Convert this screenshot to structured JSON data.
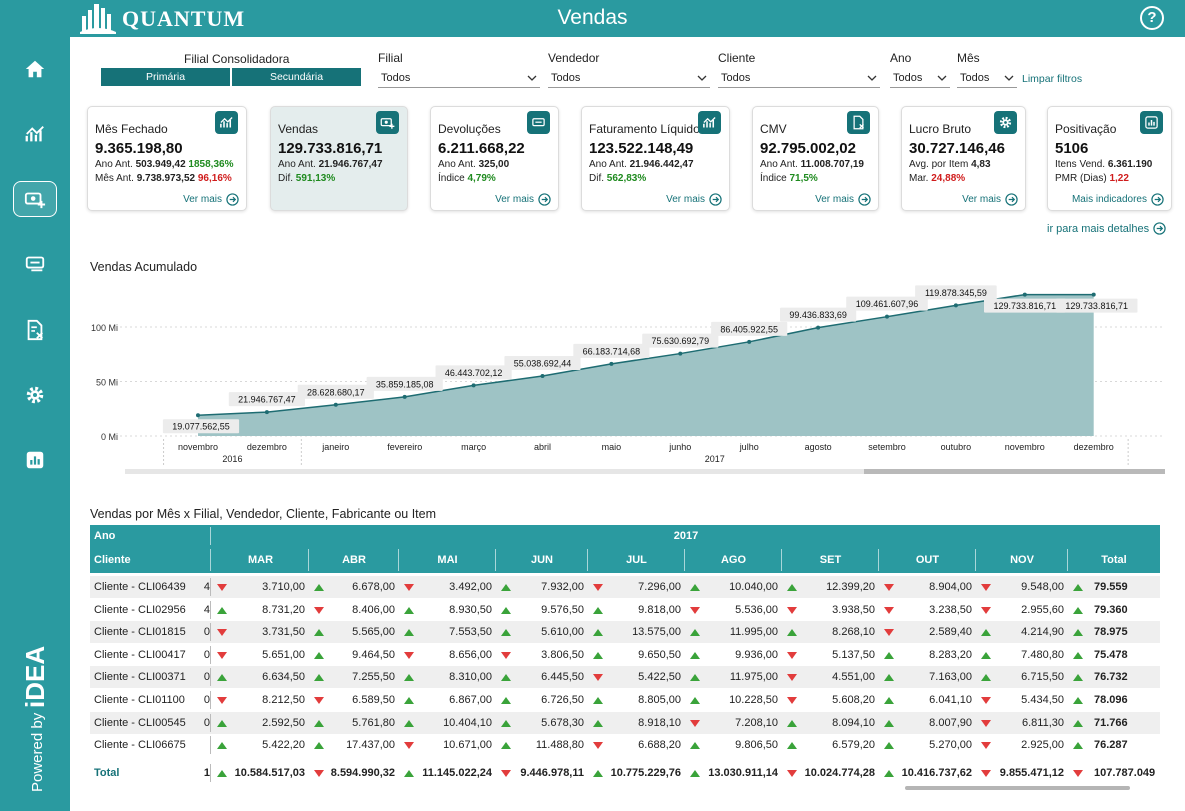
{
  "app": {
    "brand": "QUANTUM",
    "title": "Vendas",
    "help": "?"
  },
  "sidebar": {
    "items": [
      {
        "name": "home-icon"
      },
      {
        "name": "trend-chart-icon"
      },
      {
        "name": "sales-icon"
      },
      {
        "name": "returns-icon"
      },
      {
        "name": "document-x-icon"
      },
      {
        "name": "gear-icon"
      },
      {
        "name": "bar-chart-icon"
      }
    ],
    "powered_by": "Powered by",
    "powered_brand": "iDEA"
  },
  "filters": {
    "consolidated_label": "Filial Consolidadora",
    "seg_primary": "Primária",
    "seg_secondary": "Secundária",
    "filial": {
      "label": "Filial",
      "value": "Todos"
    },
    "vendedor": {
      "label": "Vendedor",
      "value": "Todos"
    },
    "cliente": {
      "label": "Cliente",
      "value": "Todos"
    },
    "ano": {
      "label": "Ano",
      "value": "Todos"
    },
    "mes": {
      "label": "Mês",
      "value": "Todos"
    },
    "clear": "Limpar filtros"
  },
  "kpis": [
    {
      "title": "Mês Fechado",
      "value": "9.365.198,80",
      "l1a": "Ano Ant. ",
      "l1b": "503.949,42",
      "l1c": " 1858,36%",
      "l1cls": "pos",
      "l2a": "Mês Ant. ",
      "l2b": "9.738.973,52",
      "l2c": " 96,16%",
      "l2cls": "neg",
      "more": "Ver mais"
    },
    {
      "title": "Vendas",
      "value": "129.733.816,71",
      "l1a": "Ano Ant. ",
      "l1b": "21.946.767,47",
      "l1c": "",
      "l1cls": "pos",
      "l2a": "Dif. ",
      "l2b": "",
      "l2c": "591,13%",
      "l2cls": "pos",
      "more": ""
    },
    {
      "title": "Devoluções",
      "value": "6.211.668,22",
      "l1a": "Ano Ant. ",
      "l1b": "325,00",
      "l1c": "",
      "l1cls": "pos",
      "l2a": "Índice ",
      "l2b": "",
      "l2c": "4,79%",
      "l2cls": "pos",
      "more": "Ver mais"
    },
    {
      "title": "Faturamento Líquido",
      "value": "123.522.148,49",
      "l1a": "Ano Ant. ",
      "l1b": "21.946.442,47",
      "l1c": "",
      "l1cls": "pos",
      "l2a": "Dif. ",
      "l2b": "",
      "l2c": "562,83%",
      "l2cls": "pos",
      "more": "Ver mais"
    },
    {
      "title": "CMV",
      "value": "92.795.002,02",
      "l1a": "Ano Ant. ",
      "l1b": "11.008.707,19",
      "l1c": "",
      "l1cls": "pos",
      "l2a": "Índice ",
      "l2b": "",
      "l2c": "71,5%",
      "l2cls": "pos",
      "more": "Ver mais"
    },
    {
      "title": "Lucro Bruto",
      "value": "30.727.146,46",
      "l1a": "Avg. por Item ",
      "l1b": "4,83",
      "l1c": "",
      "l1cls": "pos",
      "l2a": "Mar. ",
      "l2b": "",
      "l2c": "24,88%",
      "l2cls": "neg",
      "more": "Ver mais"
    },
    {
      "title": "Positivação",
      "value": "5106",
      "l1a": "Itens Vend. ",
      "l1b": "6.361.190",
      "l1c": "",
      "l1cls": "pos",
      "l2a": "PMR (Dias) ",
      "l2b": "",
      "l2c": "1,22",
      "l2cls": "neg",
      "more": "Mais indicadores"
    }
  ],
  "more_details": "ir para mais detalhes",
  "chart_data": {
    "type": "area",
    "title": "Vendas Acumulado",
    "x": [
      "novembro",
      "dezembro",
      "janeiro",
      "fevereiro",
      "março",
      "abril",
      "maio",
      "junho",
      "julho",
      "agosto",
      "setembro",
      "outubro",
      "novembro",
      "dezembro"
    ],
    "year_groups": [
      {
        "year": "2016",
        "count": 2
      },
      {
        "year": "2017",
        "count": 12
      }
    ],
    "values": [
      19077562.55,
      21946767.47,
      28628680.17,
      35859185.08,
      46443702.12,
      55038692.44,
      66183714.68,
      75630692.79,
      86405922.55,
      99436833.69,
      109461607.96,
      119878345.59,
      129733816.71,
      129733816.71
    ],
    "labels": [
      "19.077.562,55",
      "21.946.767,47",
      "28.628.680,17",
      "35.859.185,08",
      "46.443.702,12",
      "55.038.692,44",
      "66.183.714,68",
      "75.630.692,79",
      "86.405.922,55",
      "99.436.833,69",
      "109.461.607,96",
      "119.878.345,59",
      "129.733.816,71",
      "129.733.816,71"
    ],
    "yticks": [
      "0 Mi",
      "50 Mi",
      "100 Mi"
    ],
    "ytick_values": [
      0,
      50000000,
      100000000
    ],
    "ylim": [
      0,
      140000000
    ],
    "grid": true,
    "fill": "#9ec3c5",
    "line": "#1e6c72"
  },
  "table": {
    "title": "Vendas por Mês x Filial, Vendedor, Cliente, Fabricante ou Item",
    "row_header_year": "Ano",
    "row_header_client": "Cliente",
    "year": "2017",
    "months": [
      "MAR",
      "ABR",
      "MAI",
      "JUN",
      "JUL",
      "AGO",
      "SET",
      "OUT",
      "NOV"
    ],
    "total_label": "Total",
    "rows": [
      {
        "client": "Cliente - CLI06439",
        "clip": "4",
        "cells": [
          [
            "dn",
            "3.710,00"
          ],
          [
            "up",
            "6.678,00"
          ],
          [
            "dn",
            "3.492,00"
          ],
          [
            "up",
            "7.932,00"
          ],
          [
            "dn",
            "7.296,00"
          ],
          [
            "up",
            "10.040,00"
          ],
          [
            "up",
            "12.399,20"
          ],
          [
            "dn",
            "8.904,00"
          ],
          [
            "dn",
            "9.548,00"
          ]
        ],
        "total": [
          "up",
          "79.559"
        ]
      },
      {
        "client": "Cliente - CLI02956",
        "clip": "4",
        "cells": [
          [
            "up",
            "8.731,20"
          ],
          [
            "dn",
            "8.406,00"
          ],
          [
            "up",
            "8.930,50"
          ],
          [
            "up",
            "9.576,50"
          ],
          [
            "up",
            "9.818,00"
          ],
          [
            "dn",
            "5.536,00"
          ],
          [
            "dn",
            "3.938,50"
          ],
          [
            "dn",
            "3.238,50"
          ],
          [
            "dn",
            "2.955,60"
          ]
        ],
        "total": [
          "up",
          "79.360"
        ]
      },
      {
        "client": "Cliente - CLI01815",
        "clip": "0",
        "cells": [
          [
            "dn",
            "3.731,50"
          ],
          [
            "up",
            "5.565,00"
          ],
          [
            "up",
            "7.553,50"
          ],
          [
            "up",
            "5.610,00"
          ],
          [
            "up",
            "13.575,00"
          ],
          [
            "up",
            "11.995,00"
          ],
          [
            "up",
            "8.268,10"
          ],
          [
            "dn",
            "2.589,40"
          ],
          [
            "up",
            "4.214,90"
          ]
        ],
        "total": [
          "up",
          "78.975"
        ]
      },
      {
        "client": "Cliente - CLI00417",
        "clip": "0",
        "cells": [
          [
            "dn",
            "5.651,00"
          ],
          [
            "up",
            "9.464,50"
          ],
          [
            "dn",
            "8.656,00"
          ],
          [
            "dn",
            "3.806,50"
          ],
          [
            "up",
            "9.650,50"
          ],
          [
            "up",
            "9.936,00"
          ],
          [
            "dn",
            "5.137,50"
          ],
          [
            "up",
            "8.283,20"
          ],
          [
            "up",
            "7.480,80"
          ]
        ],
        "total": [
          "up",
          "75.478"
        ]
      },
      {
        "client": "Cliente - CLI00371",
        "clip": "0",
        "cells": [
          [
            "up",
            "6.634,50"
          ],
          [
            "up",
            "7.255,50"
          ],
          [
            "up",
            "8.310,00"
          ],
          [
            "up",
            "6.445,50"
          ],
          [
            "dn",
            "5.422,50"
          ],
          [
            "up",
            "11.975,00"
          ],
          [
            "dn",
            "4.551,00"
          ],
          [
            "up",
            "7.163,00"
          ],
          [
            "up",
            "6.715,50"
          ]
        ],
        "total": [
          "up",
          "76.732"
        ]
      },
      {
        "client": "Cliente - CLI01100",
        "clip": "0",
        "cells": [
          [
            "dn",
            "8.212,50"
          ],
          [
            "dn",
            "6.589,50"
          ],
          [
            "up",
            "6.867,00"
          ],
          [
            "up",
            "6.726,50"
          ],
          [
            "up",
            "8.805,00"
          ],
          [
            "up",
            "10.228,50"
          ],
          [
            "dn",
            "5.608,20"
          ],
          [
            "up",
            "6.041,10"
          ],
          [
            "dn",
            "5.434,50"
          ]
        ],
        "total": [
          "up",
          "78.096"
        ]
      },
      {
        "client": "Cliente - CLI00545",
        "clip": "0",
        "cells": [
          [
            "up",
            "2.592,50"
          ],
          [
            "up",
            "5.761,80"
          ],
          [
            "up",
            "10.404,10"
          ],
          [
            "up",
            "5.678,30"
          ],
          [
            "up",
            "8.918,10"
          ],
          [
            "dn",
            "7.208,10"
          ],
          [
            "up",
            "8.094,10"
          ],
          [
            "up",
            "8.007,90"
          ],
          [
            "dn",
            "6.811,30"
          ]
        ],
        "total": [
          "up",
          "71.766"
        ]
      },
      {
        "client": "Cliente - CLI06675",
        "clip": "",
        "cells": [
          [
            "up",
            "5.422,20"
          ],
          [
            "up",
            "17.437,00"
          ],
          [
            "dn",
            "10.671,00"
          ],
          [
            "up",
            "11.488,80"
          ],
          [
            "dn",
            "6.688,20"
          ],
          [
            "up",
            "9.806,50"
          ],
          [
            "up",
            "6.579,20"
          ],
          [
            "up",
            "5.270,00"
          ],
          [
            "dn",
            "2.925,00"
          ]
        ],
        "total": [
          "up",
          "76.287"
        ]
      }
    ],
    "total_row": {
      "label": "Total",
      "clip": "1",
      "cells": [
        [
          "up",
          "10.584.517,03"
        ],
        [
          "dn",
          "8.594.990,32"
        ],
        [
          "up",
          "11.145.022,24"
        ],
        [
          "dn",
          "9.446.978,11"
        ],
        [
          "up",
          "10.775.229,76"
        ],
        [
          "up",
          "13.030.911,14"
        ],
        [
          "dn",
          "10.024.774,28"
        ],
        [
          "up",
          "10.416.737,62"
        ],
        [
          "dn",
          "9.855.471,12"
        ]
      ],
      "total": [
        "dn",
        "107.787.049"
      ]
    }
  }
}
